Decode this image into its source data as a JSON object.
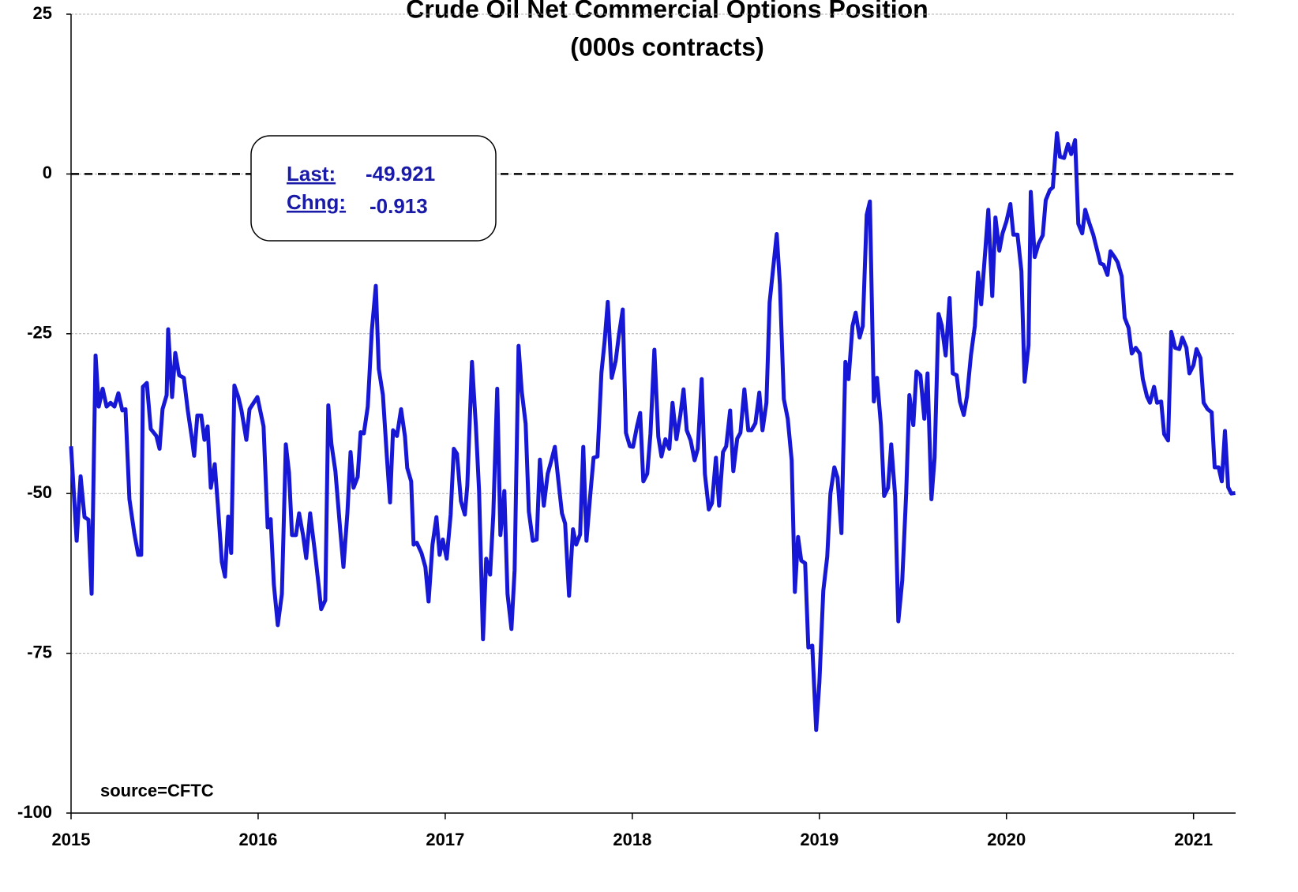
{
  "chart_data": {
    "type": "line",
    "title": "Crude Oil Net Commercial Options Position",
    "subtitle": "(000s contracts)",
    "annotations": {
      "last_label": "Last:",
      "last_value": "-49.921",
      "change_label": "Chng:",
      "change_value": "-0.913"
    },
    "source": "source=CFTC",
    "xlim": [
      2015,
      2021.225
    ],
    "xticks": [
      2015,
      2016,
      2017,
      2018,
      2019,
      2020,
      2021
    ],
    "ylim": [
      -100,
      25
    ],
    "yticks": [
      25,
      0,
      -25,
      -50,
      -75,
      -100
    ],
    "grid": true,
    "hline": 0,
    "x": [
      2015.0,
      2015.03,
      2015.051,
      2015.072,
      2015.093,
      2015.11,
      2015.131,
      2015.148,
      2015.169,
      2015.19,
      2015.211,
      2015.232,
      2015.253,
      2015.274,
      2015.291,
      2015.312,
      2015.338,
      2015.359,
      2015.375,
      2015.384,
      2015.405,
      2015.426,
      2015.456,
      2015.473,
      2015.489,
      2015.511,
      2015.519,
      2015.54,
      2015.557,
      2015.578,
      2015.603,
      2015.624,
      2015.646,
      2015.658,
      2015.675,
      2015.696,
      2015.713,
      2015.73,
      2015.747,
      2015.768,
      2015.785,
      2015.806,
      2015.823,
      2015.84,
      2015.856,
      2015.873,
      2015.894,
      2015.911,
      2015.937,
      2015.954,
      2015.996,
      2016.029,
      2016.051,
      2016.067,
      2016.084,
      2016.105,
      2016.127,
      2016.148,
      2016.165,
      2016.181,
      2016.202,
      2016.219,
      2016.24,
      2016.257,
      2016.278,
      2016.304,
      2016.325,
      2016.337,
      2016.359,
      2016.375,
      2016.392,
      2016.413,
      2016.439,
      2016.456,
      2016.477,
      2016.494,
      2016.51,
      2016.532,
      2016.548,
      2016.565,
      2016.586,
      2016.608,
      2016.629,
      2016.645,
      2016.667,
      2016.688,
      2016.705,
      2016.721,
      2016.742,
      2016.764,
      2016.785,
      2016.797,
      2016.818,
      2016.831,
      2016.848,
      2016.873,
      2016.894,
      2016.911,
      2016.932,
      2016.953,
      2016.97,
      2016.987,
      2017.008,
      2017.029,
      2017.046,
      2017.063,
      2017.084,
      2017.105,
      2017.118,
      2017.143,
      2017.164,
      2017.181,
      2017.202,
      2017.219,
      2017.24,
      2017.257,
      2017.278,
      2017.295,
      2017.316,
      2017.333,
      2017.354,
      2017.371,
      2017.392,
      2017.409,
      2017.43,
      2017.447,
      2017.468,
      2017.489,
      2017.506,
      2017.527,
      2017.548,
      2017.565,
      2017.586,
      2017.603,
      2017.624,
      2017.641,
      2017.662,
      2017.683,
      2017.7,
      2017.721,
      2017.738,
      2017.755,
      2017.776,
      2017.793,
      2017.814,
      2017.835,
      2017.852,
      2017.869,
      2017.89,
      2017.911,
      2017.928,
      2017.949,
      2017.966,
      2017.987,
      2018.004,
      2018.025,
      2018.042,
      2018.059,
      2018.08,
      2018.097,
      2018.118,
      2018.139,
      2018.156,
      2018.177,
      2018.198,
      2018.215,
      2018.236,
      2018.257,
      2018.274,
      2018.291,
      2018.312,
      2018.333,
      2018.35,
      2018.371,
      2018.388,
      2018.409,
      2018.426,
      2018.447,
      2018.464,
      2018.485,
      2018.502,
      2018.523,
      2018.54,
      2018.561,
      2018.578,
      2018.599,
      2018.62,
      2018.637,
      2018.658,
      2018.679,
      2018.696,
      2018.717,
      2018.734,
      2018.755,
      2018.772,
      2018.789,
      2018.81,
      2018.831,
      2018.852,
      2018.869,
      2018.886,
      2018.903,
      2018.924,
      2018.941,
      2018.962,
      2018.983,
      2019.0,
      2019.021,
      2019.042,
      2019.059,
      2019.08,
      2019.097,
      2019.118,
      2019.139,
      2019.156,
      2019.177,
      2019.194,
      2019.215,
      2019.232,
      2019.253,
      2019.27,
      2019.291,
      2019.308,
      2019.329,
      2019.346,
      2019.367,
      2019.384,
      2019.405,
      2019.422,
      2019.443,
      2019.464,
      2019.481,
      2019.502,
      2019.519,
      2019.54,
      2019.561,
      2019.578,
      2019.599,
      2019.616,
      2019.637,
      2019.654,
      2019.675,
      2019.696,
      2019.713,
      2019.734,
      2019.751,
      2019.772,
      2019.789,
      2019.81,
      2019.831,
      2019.848,
      2019.865,
      2019.886,
      2019.903,
      2019.924,
      2019.941,
      2019.962,
      2019.979,
      2020.0,
      2020.021,
      2020.037,
      2020.059,
      2020.08,
      2020.097,
      2020.118,
      2020.13,
      2020.151,
      2020.172,
      2020.194,
      2020.21,
      2020.232,
      2020.248,
      2020.27,
      2020.286,
      2020.308,
      2020.329,
      2020.346,
      2020.367,
      2020.384,
      2020.405,
      2020.421,
      2020.443,
      2020.464,
      2020.481,
      2020.502,
      2020.519,
      2020.54,
      2020.556,
      2020.578,
      2020.594,
      2020.616,
      2020.632,
      2020.653,
      2020.67,
      2020.691,
      2020.713,
      2020.729,
      2020.751,
      2020.767,
      2020.789,
      2020.805,
      2020.827,
      2020.843,
      2020.864,
      2020.881,
      2020.902,
      2020.924,
      2020.94,
      2020.962,
      2020.978,
      2021.0,
      2021.016,
      2021.037,
      2021.054,
      2021.075,
      2021.097,
      2021.113,
      2021.134,
      2021.151,
      2021.168,
      2021.185,
      2021.202,
      2021.223
    ],
    "series": [
      {
        "name": "Net Commercial Options Position",
        "color": "#1717d6",
        "values": [
          -42.6,
          -57.4,
          -47.3,
          -53.7,
          -54.1,
          -65.7,
          -28.4,
          -36.4,
          -33.6,
          -36.4,
          -35.8,
          -36.4,
          -34.3,
          -37.0,
          -36.8,
          -50.9,
          -56.2,
          -59.6,
          -59.6,
          -33.3,
          -32.7,
          -39.9,
          -41.0,
          -43.0,
          -36.8,
          -34.6,
          -24.3,
          -34.9,
          -28.0,
          -31.5,
          -31.9,
          -37.0,
          -41.4,
          -44.1,
          -37.8,
          -37.8,
          -41.6,
          -39.5,
          -49.1,
          -45.4,
          -51.9,
          -60.7,
          -63.0,
          -53.6,
          -59.3,
          -33.1,
          -34.9,
          -37.0,
          -41.6,
          -36.8,
          -34.9,
          -39.5,
          -55.3,
          -54.0,
          -64.2,
          -70.6,
          -65.7,
          -42.3,
          -46.7,
          -56.5,
          -56.5,
          -53.1,
          -56.5,
          -60.1,
          -53.1,
          -59.3,
          -64.8,
          -68.1,
          -66.7,
          -36.2,
          -42.3,
          -46.5,
          -55.8,
          -61.5,
          -53.1,
          -43.5,
          -49.1,
          -47.4,
          -40.4,
          -40.6,
          -36.4,
          -24.4,
          -17.5,
          -30.5,
          -34.6,
          -44.2,
          -51.4,
          -40.1,
          -41.0,
          -36.8,
          -41.1,
          -46.0,
          -48.1,
          -58.0,
          -57.7,
          -59.3,
          -61.5,
          -66.9,
          -58.0,
          -53.7,
          -59.6,
          -57.2,
          -60.2,
          -53.3,
          -43.0,
          -43.8,
          -51.2,
          -53.3,
          -48.8,
          -29.4,
          -39.5,
          -49.6,
          -72.8,
          -60.2,
          -62.7,
          -53.3,
          -33.6,
          -56.5,
          -49.6,
          -65.7,
          -71.2,
          -62.0,
          -26.9,
          -34.0,
          -39.1,
          -52.8,
          -57.4,
          -57.2,
          -44.7,
          -51.9,
          -46.9,
          -45.1,
          -42.7,
          -47.5,
          -53.1,
          -54.7,
          -66.0,
          -55.6,
          -58.0,
          -56.4,
          -42.7,
          -57.4,
          -50.0,
          -44.4,
          -44.2,
          -31.1,
          -26.2,
          -20.0,
          -31.9,
          -29.3,
          -25.3,
          -21.2,
          -40.5,
          -42.6,
          -42.7,
          -39.5,
          -37.4,
          -48.1,
          -46.9,
          -40.7,
          -27.5,
          -41.1,
          -44.2,
          -41.5,
          -43.0,
          -35.8,
          -41.5,
          -37.7,
          -33.7,
          -40.1,
          -41.7,
          -44.8,
          -43.0,
          -32.1,
          -46.9,
          -52.5,
          -51.5,
          -44.4,
          -51.9,
          -43.5,
          -42.6,
          -37.0,
          -46.5,
          -41.4,
          -40.5,
          -33.7,
          -40.1,
          -40.1,
          -39.0,
          -34.2,
          -40.1,
          -35.8,
          -20.1,
          -14.2,
          -9.4,
          -17.3,
          -35.2,
          -38.3,
          -44.8,
          -65.4,
          -56.8,
          -60.5,
          -60.9,
          -74.1,
          -73.8,
          -87.0,
          -79.6,
          -65.2,
          -59.9,
          -50.0,
          -45.9,
          -47.5,
          -56.2,
          -29.4,
          -32.1,
          -23.8,
          -21.7,
          -25.6,
          -23.8,
          -6.4,
          -4.3,
          -35.6,
          -31.9,
          -39.3,
          -50.4,
          -49.1,
          -42.3,
          -50.4,
          -70.0,
          -63.6,
          -50.0,
          -34.6,
          -39.3,
          -30.9,
          -31.5,
          -38.3,
          -31.2,
          -50.9,
          -44.4,
          -21.9,
          -23.7,
          -28.4,
          -19.4,
          -31.2,
          -31.5,
          -35.6,
          -37.7,
          -34.8,
          -28.4,
          -23.8,
          -15.4,
          -20.4,
          -12.3,
          -5.6,
          -19.1,
          -6.8,
          -12.0,
          -9.3,
          -7.4,
          -4.7,
          -9.5,
          -9.5,
          -15.2,
          -32.5,
          -26.8,
          -2.8,
          -13.0,
          -10.9,
          -9.6,
          -4.1,
          -2.5,
          -2.1,
          6.4,
          2.7,
          2.5,
          4.7,
          3.1,
          5.3,
          -7.8,
          -9.3,
          -5.6,
          -7.7,
          -9.5,
          -11.5,
          -14.0,
          -14.2,
          -15.8,
          -12.1,
          -13.0,
          -13.8,
          -16.0,
          -22.5,
          -24.1,
          -28.1,
          -27.2,
          -28.1,
          -32.1,
          -34.8,
          -35.8,
          -33.3,
          -35.8,
          -35.6,
          -40.7,
          -41.7,
          -24.7,
          -27.2,
          -27.4,
          -25.6,
          -27.2,
          -31.2,
          -29.9,
          -27.4,
          -28.8,
          -35.8,
          -36.8,
          -37.3,
          -45.9,
          -45.9,
          -48.1,
          -40.2,
          -49.0,
          -50.0,
          -49.921
        ]
      }
    ]
  }
}
